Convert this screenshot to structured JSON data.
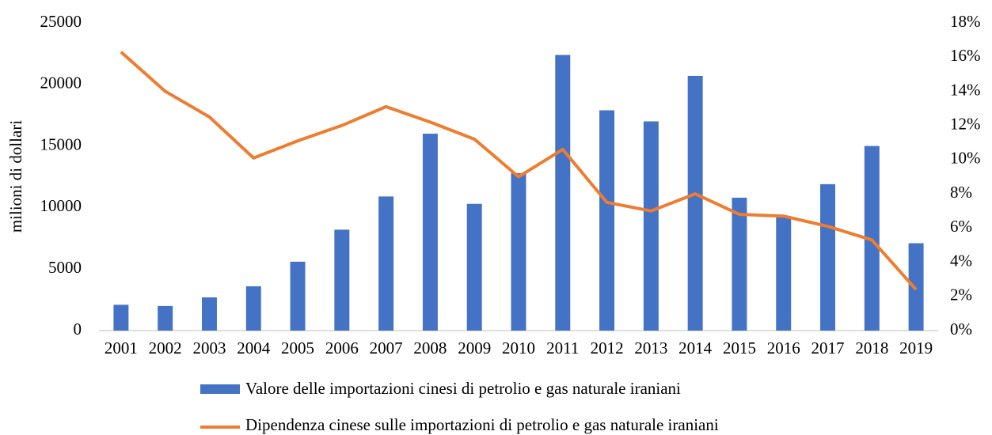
{
  "chart_data": {
    "type": "bar",
    "y_label": "milioni di dollari",
    "categories": [
      "2001",
      "2002",
      "2003",
      "2004",
      "2005",
      "2006",
      "2007",
      "2008",
      "2009",
      "2010",
      "2011",
      "2012",
      "2013",
      "2014",
      "2015",
      "2016",
      "2017",
      "2018",
      "2019"
    ],
    "series": [
      {
        "name": "Valore delle importazioni cinesi di petrolio e gas naturale iraniani",
        "color": "#4472c4",
        "type": "bar",
        "values": [
          2100,
          2000,
          2700,
          3600,
          5600,
          8200,
          10900,
          16000,
          10300,
          12800,
          22400,
          17900,
          17000,
          20700,
          10800,
          9300,
          11900,
          15000,
          7100
        ]
      },
      {
        "name": "Dipendenza cinese sulle importazioni di petrolio e gas naturale iraniani",
        "color": "#ed7d31",
        "type": "line",
        "axis": "y2",
        "values": [
          16.3,
          14.0,
          12.5,
          10.1,
          11.1,
          12.0,
          13.1,
          12.2,
          11.2,
          9.0,
          10.6,
          7.5,
          7.0,
          8.0,
          6.8,
          6.7,
          6.1,
          5.3,
          2.4
        ]
      }
    ],
    "ylim": [
      0,
      25000
    ],
    "yticks": [
      0,
      5000,
      10000,
      15000,
      20000,
      25000
    ],
    "y2lim": [
      0,
      18
    ],
    "y2ticks": [
      {
        "value": 0,
        "label": "0%"
      },
      {
        "value": 2,
        "label": "2%"
      },
      {
        "value": 4,
        "label": "4%"
      },
      {
        "value": 6,
        "label": "6%"
      },
      {
        "value": 8,
        "label": "8%"
      },
      {
        "value": 10,
        "label": "10%"
      },
      {
        "value": 12,
        "label": "12%"
      },
      {
        "value": 14,
        "label": "14%"
      },
      {
        "value": 16,
        "label": "16%"
      },
      {
        "value": 18,
        "label": "18%"
      }
    ],
    "grid": false,
    "legend": "bottom"
  }
}
